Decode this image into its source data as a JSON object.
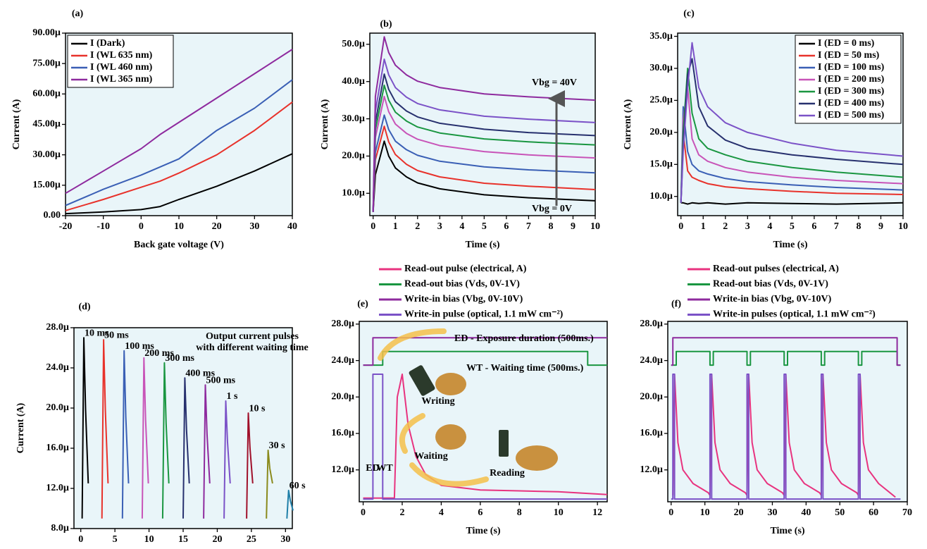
{
  "chart_data": [
    {
      "type": "line",
      "title": "(a)",
      "xlabel": "Back gate voltage (V)",
      "ylabel": "Current (A)",
      "legend": "upper left",
      "xlim": [
        -20,
        40
      ],
      "xticks": [
        -20,
        -10,
        0,
        10,
        20,
        30,
        40
      ],
      "ylim": [
        0,
        90
      ],
      "yticks": [
        {
          "value": 0,
          "label": "0.00"
        },
        {
          "value": 15,
          "label": "15.00µ"
        },
        {
          "value": 30,
          "label": "30.00µ"
        },
        {
          "value": 45,
          "label": "45.00µ"
        },
        {
          "value": 60,
          "label": "60.00µ"
        },
        {
          "value": 75,
          "label": "75.00µ"
        },
        {
          "value": 90,
          "label": "90.00µ"
        }
      ],
      "x": [
        -20,
        -10,
        0,
        5,
        10,
        20,
        30,
        40
      ],
      "series": [
        {
          "name": "I (Dark)",
          "color": "#000000",
          "values": [
            1,
            1.8,
            3,
            4.5,
            8,
            14.5,
            22,
            30.5
          ]
        },
        {
          "name": "I (WL 635 nm)",
          "color": "#e8322b",
          "values": [
            2.5,
            8,
            14,
            17,
            21,
            30,
            42,
            56
          ]
        },
        {
          "name": "I (WL 460 nm)",
          "color": "#3a5fb5",
          "values": [
            5,
            13,
            20,
            24,
            28,
            42,
            53,
            67
          ]
        },
        {
          "name": "I (WL 365 nm)",
          "color": "#8e2a9e",
          "values": [
            11,
            22,
            33,
            40,
            46,
            58,
            70,
            82
          ]
        }
      ]
    },
    {
      "type": "line",
      "title": "(b)",
      "xlabel": "Time (s)",
      "ylabel": "Current (A)",
      "annotations": [
        "Vbg = 40V",
        "Vbg = 0V"
      ],
      "xlim": [
        -0.15,
        10
      ],
      "xticks": [
        0,
        1,
        2,
        3,
        4,
        5,
        6,
        7,
        8,
        9,
        10
      ],
      "ylim": [
        4,
        53
      ],
      "yticks": [
        {
          "value": 10,
          "label": "10.0µ"
        },
        {
          "value": 20,
          "label": "20.0µ"
        },
        {
          "value": 30,
          "label": "30.0µ"
        },
        {
          "value": 40,
          "label": "40.0µ"
        },
        {
          "value": 50,
          "label": "50.0µ"
        }
      ],
      "x": [
        0,
        0.1,
        0.5,
        0.7,
        1,
        1.5,
        2,
        3,
        5,
        7,
        10
      ],
      "series": [
        {
          "color": "#000000",
          "values": [
            5,
            15,
            24,
            20,
            16.8,
            14.4,
            12.8,
            11.2,
            9.6,
            8.8,
            8
          ]
        },
        {
          "color": "#e8322b",
          "values": [
            5,
            19,
            28,
            23.8,
            20.4,
            17.8,
            16.1,
            14.4,
            12.7,
            11.9,
            11
          ]
        },
        {
          "color": "#3a5fb5",
          "values": [
            5,
            21,
            31,
            27.1,
            24,
            21.7,
            20.2,
            18.6,
            17.1,
            16.3,
            15.5
          ]
        },
        {
          "color": "#c854b8",
          "values": [
            5,
            25,
            36,
            31.9,
            28.6,
            26.1,
            24.5,
            22.8,
            21.2,
            20.3,
            19.5
          ]
        },
        {
          "color": "#1a9641",
          "values": [
            5,
            27,
            39,
            35,
            31.8,
            29.4,
            27.8,
            26.2,
            24.6,
            23.8,
            23
          ]
        },
        {
          "color": "#27306e",
          "values": [
            5,
            29,
            42,
            37.9,
            34.6,
            32.1,
            30.5,
            28.8,
            27.2,
            26.3,
            25.5
          ]
        },
        {
          "color": "#7b52c7",
          "values": [
            5,
            32,
            46,
            41.8,
            38.4,
            35.8,
            34.1,
            32.4,
            30.7,
            29.9,
            29
          ]
        },
        {
          "color": "#8e2a9e",
          "values": [
            5,
            36,
            52,
            47.8,
            44.4,
            41.8,
            40.1,
            38.4,
            36.7,
            35.9,
            35
          ]
        }
      ]
    },
    {
      "type": "line",
      "title": "(c)",
      "xlabel": "Time (s)",
      "ylabel": "Current (A)",
      "legend": "upper right",
      "xlim": [
        -0.15,
        10
      ],
      "xticks": [
        0,
        1,
        2,
        3,
        4,
        5,
        6,
        7,
        8,
        9,
        10
      ],
      "ylim": [
        7,
        35.5
      ],
      "yticks": [
        {
          "value": 10,
          "label": "10.0µ"
        },
        {
          "value": 15,
          "label": "15.0µ"
        },
        {
          "value": 20,
          "label": "20.0µ"
        },
        {
          "value": 25,
          "label": "25.0µ"
        },
        {
          "value": 30,
          "label": "30.0µ"
        },
        {
          "value": 35,
          "label": "35.0µ"
        }
      ],
      "x": [
        0,
        0.1,
        0.3,
        0.5,
        0.8,
        1.2,
        2,
        3,
        5,
        7,
        10
      ],
      "series": [
        {
          "name": "I (ED = 0 ms)",
          "color": "#000000",
          "values": [
            9,
            9,
            8.8,
            9,
            8.9,
            9,
            8.8,
            9,
            8.9,
            8.8,
            9
          ]
        },
        {
          "name": "I (ED = 50 ms)",
          "color": "#e8322b",
          "values": [
            9,
            20,
            14,
            13,
            12.5,
            12,
            11.5,
            11.2,
            10.8,
            10.5,
            10.3
          ]
        },
        {
          "name": "I (ED = 100 ms)",
          "color": "#3a5fb5",
          "values": [
            9,
            24,
            17,
            15,
            14,
            13.5,
            12.8,
            12.3,
            11.8,
            11.4,
            11
          ]
        },
        {
          "name": "I (ED = 200 ms)",
          "color": "#c854b8",
          "values": [
            9,
            22,
            27,
            19,
            16.5,
            15.5,
            14.5,
            13.8,
            13,
            12.5,
            12
          ]
        },
        {
          "name": "I (ED = 300 ms)",
          "color": "#1a9641",
          "values": [
            9,
            20,
            30,
            23,
            19,
            17.5,
            16.5,
            15.5,
            14.5,
            13.8,
            13
          ]
        },
        {
          "name": "I (ED = 400 ms)",
          "color": "#27306e",
          "values": [
            9,
            18,
            29,
            31.5,
            24,
            21,
            18.8,
            17.5,
            16.5,
            15.8,
            15
          ]
        },
        {
          "name": "I (ED = 500 ms)",
          "color": "#7b52c7",
          "values": [
            9,
            17,
            27,
            34,
            27,
            24,
            21.5,
            20,
            18.3,
            17.2,
            16.3
          ]
        }
      ]
    },
    {
      "type": "line",
      "title": "(d)",
      "xlabel": "Time (s)",
      "ylabel": "Current (A)",
      "series_labels": "peak",
      "annotations": [
        "Output current pulses",
        "with different waiting time"
      ],
      "xlim": [
        -1,
        31
      ],
      "xticks": [
        0,
        5,
        10,
        15,
        20,
        25,
        30
      ],
      "ylim": [
        8,
        28
      ],
      "yticks": [
        {
          "value": 8,
          "label": "8.0µ"
        },
        {
          "value": 12,
          "label": "12.0µ"
        },
        {
          "value": 16,
          "label": "16.0µ"
        },
        {
          "value": 20,
          "label": "20.0µ"
        },
        {
          "value": 24,
          "label": "24.0µ"
        },
        {
          "value": 28,
          "label": "28.0µ"
        }
      ],
      "series": [
        {
          "name": "10 ms",
          "color": "#000000",
          "x": [
            0.2,
            0.45,
            0.7,
            1.1
          ],
          "values": [
            9,
            27,
            19.8,
            12.5
          ]
        },
        {
          "name": "50 ms",
          "color": "#e8322b",
          "x": [
            3.1,
            3.35,
            3.6,
            4.0
          ],
          "values": [
            9,
            26.8,
            19.7,
            12.5
          ]
        },
        {
          "name": "100 ms",
          "color": "#3a5fb5",
          "x": [
            6.1,
            6.35,
            6.6,
            7.0
          ],
          "values": [
            9,
            25.7,
            19.1,
            12.5
          ]
        },
        {
          "name": "200 ms",
          "color": "#c854b8",
          "x": [
            9.0,
            9.25,
            9.5,
            9.9
          ],
          "values": [
            9,
            25,
            18.8,
            12.5
          ]
        },
        {
          "name": "300 ms",
          "color": "#1a9641",
          "x": [
            12.0,
            12.25,
            12.5,
            12.9
          ],
          "values": [
            9,
            24.5,
            18.5,
            12.5
          ]
        },
        {
          "name": "400 ms",
          "color": "#27306e",
          "x": [
            15.0,
            15.25,
            15.5,
            15.9
          ],
          "values": [
            9,
            23,
            17.8,
            12.5
          ]
        },
        {
          "name": "500 ms",
          "color": "#8e2a9e",
          "x": [
            18.0,
            18.25,
            18.5,
            18.9
          ],
          "values": [
            9,
            22.3,
            17.4,
            12.5
          ]
        },
        {
          "name": "1 s",
          "color": "#7b52c7",
          "x": [
            21.0,
            21.25,
            21.5,
            21.9
          ],
          "values": [
            9,
            20.7,
            16.6,
            12.5
          ]
        },
        {
          "name": "10 s",
          "color": "#a0102a",
          "x": [
            24.3,
            24.55,
            24.8,
            25.2
          ],
          "values": [
            9,
            19.5,
            16,
            12.5
          ]
        },
        {
          "name": "30 s",
          "color": "#8a8a1c",
          "x": [
            27.2,
            27.45,
            27.7,
            28.1
          ],
          "values": [
            9,
            15.8,
            14,
            12.5
          ]
        },
        {
          "name": "60 s",
          "color": "#1f7fa8",
          "x": [
            30.2,
            30.45,
            30.7,
            31.1
          ],
          "values": [
            9,
            11.8,
            10.8,
            9.8
          ]
        }
      ]
    },
    {
      "type": "line",
      "title": "(e)",
      "xlabel": "Time (s)",
      "legend": "above",
      "annotations": [
        "ED - Exposure duration (500ms.)",
        "WT - Waiting time (500ms.)",
        "Writing",
        "Waiting",
        "Reading",
        "ED",
        "WT"
      ],
      "xlim": [
        -0.2,
        12.5
      ],
      "xticks": [
        0,
        2,
        4,
        6,
        8,
        10,
        12
      ],
      "ylim": [
        8.5,
        28.3
      ],
      "yticks": [
        {
          "value": 12,
          "label": "12.0µ"
        },
        {
          "value": 16,
          "label": "16.0µ"
        },
        {
          "value": 20,
          "label": "20.0µ"
        },
        {
          "value": 24,
          "label": "24.0µ"
        },
        {
          "value": 28,
          "label": "28.0µ"
        }
      ],
      "series": [
        {
          "name": "Read-out pulse (electrical, A)",
          "color": "#e8337f",
          "x": [
            0,
            1.6,
            1.75,
            2.0,
            2.3,
            2.7,
            3.2,
            4,
            6,
            8,
            10,
            12.5
          ],
          "values": [
            8.9,
            8.9,
            20,
            22.5,
            17,
            13.5,
            11.5,
            10.3,
            9.8,
            9.7,
            9.6,
            9.3
          ]
        },
        {
          "name": "Read-out bias (Vds, 0V-1V)",
          "color": "#1a9641",
          "x": [
            0,
            1,
            1,
            11.5,
            11.5,
            12.5
          ],
          "values": [
            23.5,
            23.5,
            25,
            25,
            23.5,
            23.5
          ]
        },
        {
          "name": "Write-in bias (Vbg, 0V-10V)",
          "color": "#8e2a9e",
          "x": [
            0,
            0.5,
            0.5,
            12.5
          ],
          "values": [
            23.5,
            23.5,
            26.5,
            26.5
          ]
        },
        {
          "name": "Write-in pulse (optical, 1.1 mW cm⁻²)",
          "color": "#7b52c7",
          "x": [
            0,
            0.5,
            0.5,
            1.0,
            1.0,
            12.5
          ],
          "values": [
            8.8,
            8.8,
            22.5,
            22.5,
            8.8,
            8.8
          ]
        }
      ]
    },
    {
      "type": "line",
      "title": "(f)",
      "xlabel": "Time (s)",
      "legend": "above",
      "xlim": [
        -1,
        70
      ],
      "xticks": [
        0,
        10,
        20,
        30,
        40,
        50,
        60,
        70
      ],
      "ylim": [
        8.5,
        28.3
      ],
      "yticks": [
        {
          "value": 12,
          "label": "12.0µ"
        },
        {
          "value": 16,
          "label": "16.0µ"
        },
        {
          "value": 20,
          "label": "20.0µ"
        },
        {
          "value": 24,
          "label": "24.0µ"
        },
        {
          "value": 28,
          "label": "28.0µ"
        }
      ],
      "series": [
        {
          "name": "Read-out pulses (electrical, A)",
          "color": "#e8337f",
          "x": [
            0.5,
            1,
            2,
            3.5,
            6.5,
            11,
            11.5,
            12,
            13,
            14.5,
            17.5,
            22,
            22.5,
            23,
            24,
            25.5,
            28.5,
            33,
            33.5,
            34,
            35,
            36.5,
            39.5,
            44,
            44.5,
            45,
            46,
            47.5,
            50.5,
            55,
            55.5,
            56,
            57,
            58.5,
            61.5,
            66.5
          ],
          "values": [
            9.2,
            22.5,
            15,
            12,
            10.5,
            9.5,
            9.2,
            22.5,
            15,
            12,
            10.5,
            9.5,
            9.2,
            22.5,
            15,
            12,
            10.5,
            9.5,
            9.2,
            22.5,
            15,
            12,
            10.5,
            9.5,
            9.2,
            22.5,
            15,
            12,
            10.5,
            9.5,
            9.2,
            22.5,
            15,
            12,
            10.5,
            9.0
          ]
        },
        {
          "name": "Read-out bias (Vds, 0V-1V)",
          "color": "#1a9641",
          "x": [
            0,
            1.5,
            1.5,
            11.5,
            11.5,
            12.5,
            12.5,
            22.5,
            22.5,
            23.5,
            23.5,
            33.5,
            33.5,
            34.5,
            34.5,
            44.5,
            44.5,
            45.5,
            45.5,
            55.5,
            55.5,
            56.5,
            56.5,
            67,
            67,
            68
          ],
          "values": [
            23.5,
            23.5,
            25,
            25,
            23.5,
            23.5,
            25,
            25,
            23.5,
            23.5,
            25,
            25,
            23.5,
            23.5,
            25,
            25,
            23.5,
            23.5,
            25,
            25,
            23.5,
            23.5,
            25,
            25,
            23.5,
            23.5
          ]
        },
        {
          "name": "Write-in bias (Vbg, 0V-10V)",
          "color": "#8e2a9e",
          "x": [
            0,
            0.5,
            0.5,
            67,
            67,
            68
          ],
          "values": [
            23.5,
            23.5,
            26.5,
            26.5,
            23.5,
            23.5
          ]
        },
        {
          "name": "Write-in pulses (optical, 1.1 mW cm⁻²)",
          "color": "#7b52c7",
          "x": [
            0,
            0.5,
            0.5,
            1,
            1,
            11.5,
            11.5,
            12,
            12,
            22.5,
            22.5,
            23,
            23,
            33.5,
            33.5,
            34,
            34,
            44.5,
            44.5,
            45,
            45,
            55.5,
            55.5,
            56,
            56,
            68
          ],
          "values": [
            8.8,
            8.8,
            22.5,
            22.5,
            8.8,
            8.8,
            22.5,
            22.5,
            8.8,
            8.8,
            22.5,
            22.5,
            8.8,
            8.8,
            22.5,
            22.5,
            8.8,
            8.8,
            22.5,
            22.5,
            8.8,
            8.8,
            22.5,
            22.5,
            8.8,
            8.8
          ]
        }
      ]
    }
  ]
}
